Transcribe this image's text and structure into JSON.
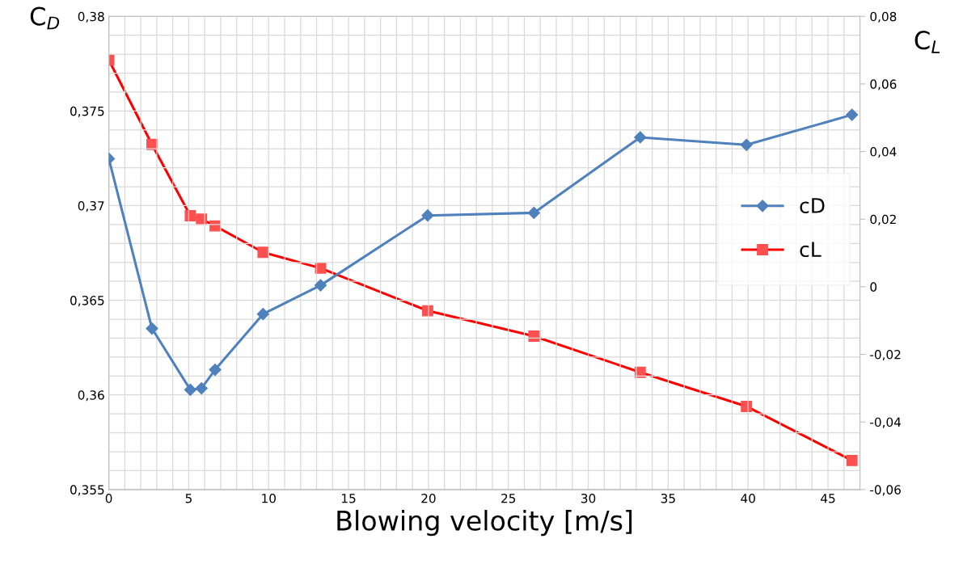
{
  "chart_data": {
    "type": "line",
    "xlabel": "Blowing velocity [m/s]",
    "ylabel": "C$_{D}$",
    "y2label": "C$_{L}$",
    "x": [
      0,
      2.7,
      5.1,
      5.8,
      6.65,
      9.65,
      13.25,
      19.95,
      26.6,
      33.25,
      39.9,
      46.5
    ],
    "series": [
      {
        "name": "cD",
        "color": "#4f81bd",
        "marker": "diamond",
        "values": [
          0.37248,
          0.36351,
          0.36027,
          0.36035,
          0.36133,
          0.36427,
          0.36579,
          0.36948,
          0.36962,
          0.37361,
          0.37321,
          0.3748
        ]
      },
      {
        "name": "cL",
        "color": "#ff0000",
        "marker": "square",
        "axis": "y2",
        "values": [
          0.0671,
          0.0421,
          0.021,
          0.02,
          0.018,
          0.0102,
          0.0055,
          -0.0071,
          -0.0146,
          -0.0253,
          -0.0354,
          -0.0514
        ]
      }
    ],
    "xlim": [
      0,
      47
    ],
    "xticks": [
      0,
      5,
      10,
      15,
      20,
      25,
      30,
      35,
      40,
      45
    ],
    "ylim": [
      0.355,
      0.38
    ],
    "yticks": [
      {
        "value": 0.355,
        "label": "0,355"
      },
      {
        "value": 0.36,
        "label": "0,36"
      },
      {
        "value": 0.365,
        "label": "0,365"
      },
      {
        "value": 0.37,
        "label": "0,37"
      },
      {
        "value": 0.375,
        "label": "0,375"
      },
      {
        "value": 0.38,
        "label": "0,38"
      }
    ],
    "y2lim": [
      -0.06,
      0.08
    ],
    "y2ticks": [
      {
        "value": -0.06,
        "label": "-0,06"
      },
      {
        "value": -0.04,
        "label": "-0,04"
      },
      {
        "value": -0.02,
        "label": "-0,02"
      },
      0,
      {
        "value": 0.02,
        "label": "0,02"
      },
      {
        "value": 0.04,
        "label": "0,04"
      },
      {
        "value": 0.06,
        "label": "0,06"
      },
      {
        "value": 0.08,
        "label": "0,08"
      }
    ],
    "grid": true,
    "legend": "right"
  }
}
